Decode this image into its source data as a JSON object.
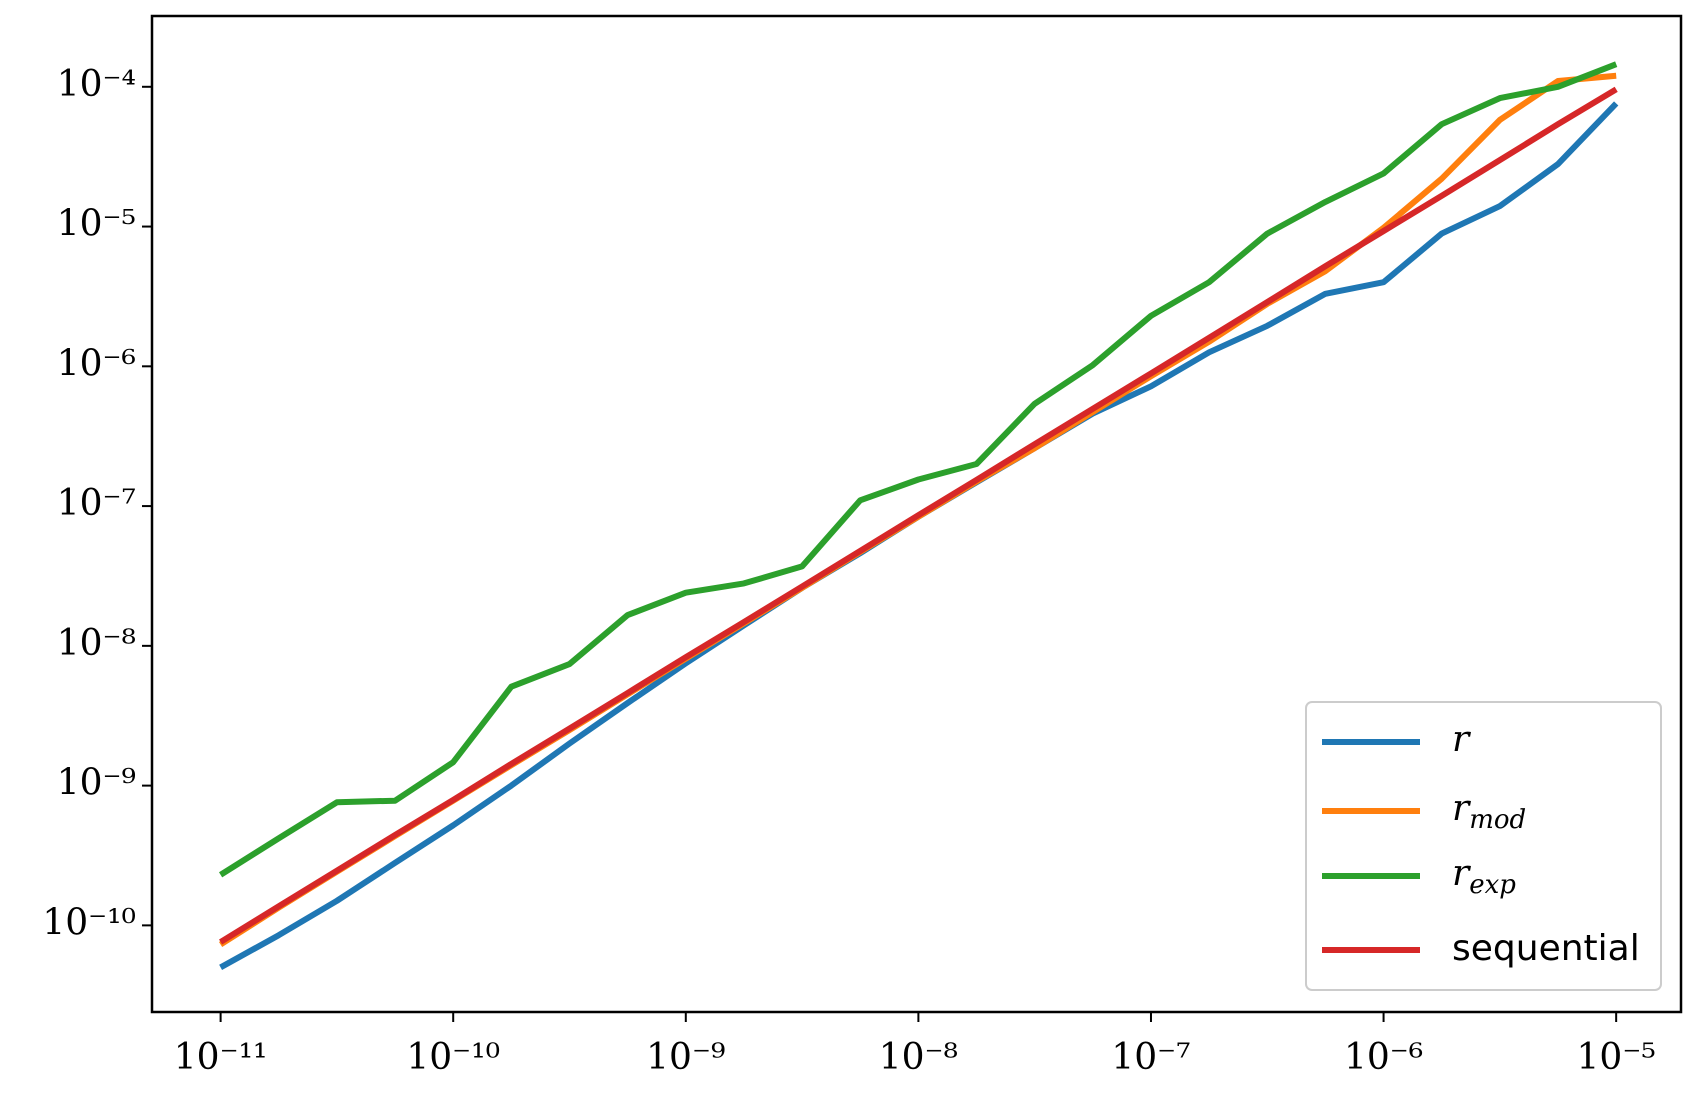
{
  "chart_data": {
    "type": "line",
    "xscale": "log",
    "yscale": "log",
    "legend": "lower right",
    "x": [
      1e-11,
      1.778e-11,
      3.162e-11,
      5.623e-11,
      1e-10,
      1.778e-10,
      3.162e-10,
      5.623e-10,
      1e-09,
      1.778e-09,
      3.162e-09,
      5.623e-09,
      1e-08,
      1.778e-08,
      3.162e-08,
      5.623e-08,
      1e-07,
      1.778e-07,
      3.162e-07,
      5.623e-07,
      1e-06,
      1.778e-06,
      3.162e-06,
      5.623e-06,
      1e-05
    ],
    "series": [
      {
        "name": "r",
        "color": "#1f77b4",
        "values": [
          5e-11,
          8.5e-11,
          1.5e-10,
          2.8e-10,
          5.2e-10,
          1e-09,
          2e-09,
          3.9e-09,
          7.5e-09,
          1.4e-08,
          2.6e-08,
          4.6e-08,
          8.4e-08,
          1.48e-07,
          2.6e-07,
          4.6e-07,
          7.2e-07,
          1.26e-06,
          1.95e-06,
          3.3e-06,
          4e-06,
          8.9e-06,
          1.4e-05,
          2.8e-05,
          7.6e-05
        ]
      },
      {
        "name": "rmod",
        "color": "#ff7f0e",
        "values": [
          7.3e-11,
          1.34e-10,
          2.42e-10,
          4.35e-10,
          7.8e-10,
          1.4e-09,
          2.5e-09,
          4.5e-09,
          8.1e-09,
          1.45e-08,
          2.6e-08,
          4.7e-08,
          8.4e-08,
          1.5e-07,
          2.6e-07,
          4.7e-07,
          8.5e-07,
          1.5e-06,
          2.8e-06,
          4.8e-06,
          9.8e-06,
          2.2e-05,
          5.8e-05,
          0.00011,
          0.00012
        ]
      },
      {
        "name": "rexp",
        "color": "#2ca02c",
        "values": [
          2.3e-10,
          4.2e-10,
          7.6e-10,
          7.8e-10,
          1.47e-09,
          5.1e-09,
          7.4e-09,
          1.66e-08,
          2.4e-08,
          2.8e-08,
          3.7e-08,
          1.1e-07,
          1.55e-07,
          2e-07,
          5.4e-07,
          1.02e-06,
          2.3e-06,
          4e-06,
          8.9e-06,
          1.5e-05,
          2.4e-05,
          5.4e-05,
          8.3e-05,
          0.0001,
          0.000145
        ]
      },
      {
        "name": "sequential",
        "color": "#d62728",
        "values": [
          7.6e-11,
          1.37e-10,
          2.46e-10,
          4.43e-10,
          7.9e-10,
          1.43e-09,
          2.56e-09,
          4.6e-09,
          8.3e-09,
          1.48e-08,
          2.66e-08,
          4.78e-08,
          8.6e-08,
          1.54e-07,
          2.77e-07,
          4.97e-07,
          8.9e-07,
          1.6e-06,
          2.88e-06,
          5.2e-06,
          9.3e-06,
          1.66e-05,
          2.99e-05,
          5.4e-05,
          9.6e-05
        ]
      }
    ],
    "xlim": [
      5.07e-12,
      1.9e-05
    ],
    "ylim": [
      2.4e-11,
      0.000321
    ],
    "xticks": [
      {
        "value": 1e-11,
        "label": "10⁻¹¹"
      },
      {
        "value": 1e-10,
        "label": "10⁻¹⁰"
      },
      {
        "value": 1e-09,
        "label": "10⁻⁹"
      },
      {
        "value": 1e-08,
        "label": "10⁻⁸"
      },
      {
        "value": 1e-07,
        "label": "10⁻⁷"
      },
      {
        "value": 1e-06,
        "label": "10⁻⁶"
      },
      {
        "value": 1e-05,
        "label": "10⁻⁵"
      }
    ],
    "yticks": [
      {
        "value": 1e-10,
        "label": "10⁻¹⁰"
      },
      {
        "value": 1e-09,
        "label": "10⁻⁹"
      },
      {
        "value": 1e-08,
        "label": "10⁻⁸"
      },
      {
        "value": 1e-07,
        "label": "10⁻⁷"
      },
      {
        "value": 1e-06,
        "label": "10⁻⁶"
      },
      {
        "value": 1e-05,
        "label": "10⁻⁵"
      },
      {
        "value": 0.0001,
        "label": "10⁻⁴"
      }
    ]
  }
}
